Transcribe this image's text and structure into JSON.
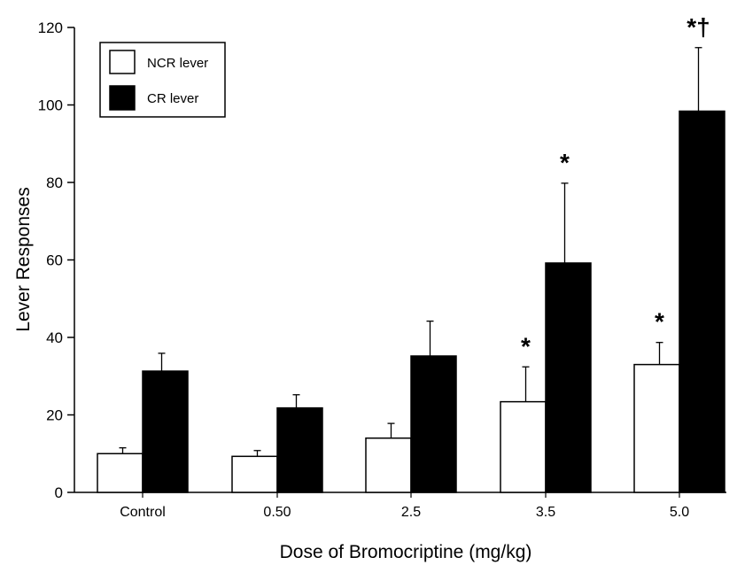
{
  "chart_data": {
    "type": "bar",
    "title": "",
    "xlabel": "Dose of  Bromocriptine (mg/kg)",
    "ylabel": "Lever Responses",
    "ylim": [
      0,
      120
    ],
    "yticks": [
      "0",
      "20",
      "40",
      "60",
      "80",
      "100",
      "120"
    ],
    "categories": [
      "Control",
      "0.50",
      "2.5",
      "3.5",
      "5.0"
    ],
    "series": [
      {
        "name": "NCR lever",
        "color": "#ffffff",
        "values": [
          10,
          9.3,
          14,
          23.4,
          33
        ],
        "errors": [
          1.5,
          1.5,
          3.8,
          9,
          5.7
        ],
        "annotations": [
          "",
          "",
          "",
          "*",
          "*"
        ]
      },
      {
        "name": "CR lever",
        "color": "#000000",
        "values": [
          31.3,
          21.8,
          35.2,
          59.2,
          98.4
        ],
        "errors": [
          4.6,
          3.4,
          9,
          20.6,
          16.4
        ],
        "annotations": [
          "",
          "",
          "",
          "*",
          "*†"
        ]
      }
    ],
    "legend_position": "top-left",
    "grid": false
  }
}
